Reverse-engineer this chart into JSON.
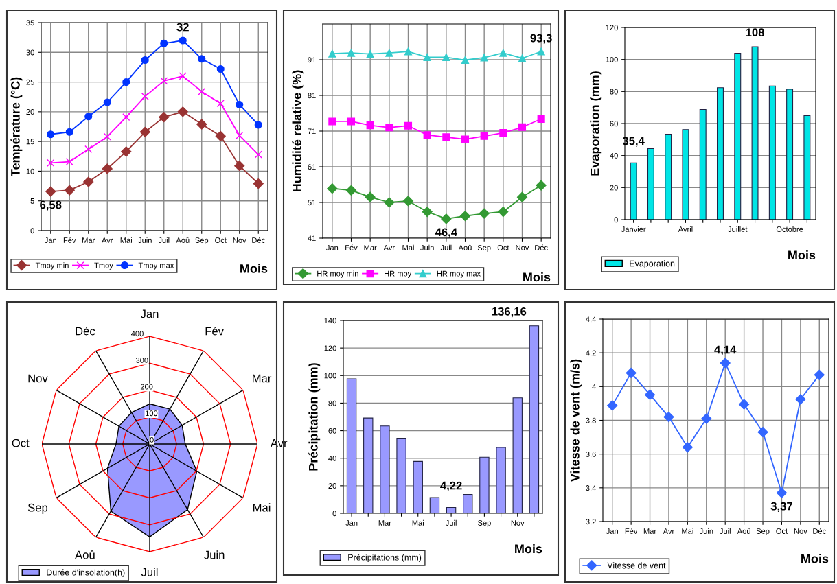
{
  "chart_data": [
    {
      "type": "line",
      "ylabel": "Température (°C)",
      "xlabel": "Mois",
      "categories": [
        "Jan",
        "Fév",
        "Mar",
        "Avr",
        "Mai",
        "Juin",
        "Juil",
        "Aoû",
        "Sep",
        "Oct",
        "Nov",
        "Déc"
      ],
      "ylim": [
        0,
        35
      ],
      "yticks": [
        0,
        5,
        10,
        15,
        20,
        25,
        30,
        35
      ],
      "grid": true,
      "legend": "bottom",
      "series": [
        {
          "name": "Tmoy min",
          "color": "#993333",
          "marker": "diamond",
          "values": [
            6.58,
            6.8,
            8.2,
            10.4,
            13.3,
            16.6,
            19.1,
            20.0,
            17.9,
            15.9,
            10.9,
            7.9
          ]
        },
        {
          "name": "Tmoy",
          "color": "#ff00ff",
          "marker": "cross",
          "values": [
            11.4,
            11.6,
            13.7,
            15.8,
            19.1,
            22.6,
            25.2,
            26.0,
            23.4,
            21.4,
            16.0,
            12.8
          ]
        },
        {
          "name": "Tmoy max",
          "color": "#0033ff",
          "marker": "circle",
          "values": [
            16.2,
            16.6,
            19.2,
            21.6,
            25.0,
            28.7,
            31.5,
            32.0,
            28.9,
            27.2,
            21.2,
            17.8
          ]
        }
      ],
      "annotations": [
        {
          "text": "6,58",
          "x": "Jan",
          "y": 6.58
        },
        {
          "text": "32",
          "x": "Aoû",
          "y": 32
        }
      ]
    },
    {
      "type": "line",
      "ylabel": "Humidité relative (%)",
      "xlabel": "Mois",
      "categories": [
        "Jan",
        "Fév",
        "Mar",
        "Avr",
        "Mai",
        "Juin",
        "Juil",
        "Aoû",
        "Sep",
        "Oct",
        "Nov",
        "Déc"
      ],
      "ylim": [
        41,
        101
      ],
      "yticks": [
        41,
        51,
        61,
        71,
        81,
        91
      ],
      "grid": true,
      "legend": "bottom",
      "series": [
        {
          "name": "HR moy min",
          "color": "#339933",
          "marker": "diamond",
          "values": [
            54.9,
            54.4,
            52.5,
            51.0,
            51.4,
            48.4,
            46.4,
            47.2,
            47.9,
            48.4,
            52.5,
            55.8
          ]
        },
        {
          "name": "HR moy",
          "color": "#ff00ff",
          "marker": "square",
          "values": [
            73.7,
            73.7,
            72.6,
            72.0,
            72.5,
            69.9,
            69.3,
            68.7,
            69.6,
            70.5,
            72.1,
            74.4
          ]
        },
        {
          "name": "HR moy max",
          "color": "#33cccc",
          "marker": "triangle",
          "values": [
            92.7,
            92.9,
            92.6,
            92.9,
            93.3,
            91.7,
            91.7,
            90.9,
            91.6,
            92.9,
            91.4,
            93.3
          ]
        }
      ],
      "annotations": [
        {
          "text": "93,3",
          "x": "Déc",
          "y": 93.3
        },
        {
          "text": "46,4",
          "x": "Juil",
          "y": 46.4
        }
      ]
    },
    {
      "type": "bar",
      "ylabel": "Evaporation (mm)",
      "xlabel": "Mois",
      "categories": [
        "Janvier",
        null,
        null,
        "Avril",
        null,
        null,
        "Juillet",
        null,
        null,
        "Octobre",
        null
      ],
      "ylim": [
        0,
        120
      ],
      "yticks": [
        0,
        20,
        40,
        60,
        80,
        100,
        120
      ],
      "grid": "y",
      "legend": "bottom left",
      "series": [
        {
          "name": "Evaporation",
          "color": "#00e5e5",
          "values": [
            35.4,
            44.4,
            53.3,
            56.2,
            68.8,
            82.4,
            103.9,
            108,
            83.4,
            81.4,
            64.9
          ]
        }
      ],
      "annotations": [
        {
          "text": "35,4",
          "x": "Janvier",
          "y": 35.4
        },
        "108"
      ]
    },
    {
      "type": "radar",
      "categories": [
        "Jan",
        "Fév",
        "Mar",
        "Avr",
        "Mai",
        "Juin",
        "Juil",
        "Aoû",
        "Sep",
        "Oct",
        "Nov",
        "Déc"
      ],
      "ylim": [
        0,
        400
      ],
      "yticks": [
        0,
        100,
        200,
        300,
        400
      ],
      "grid": true,
      "legend": "bottom left",
      "series": [
        {
          "name": "Durée d'insolation(h)",
          "color": "#9999ff",
          "values": [
            149,
            150,
            139,
            132,
            202,
            281,
            345,
            288,
            181,
            125,
            132,
            135
          ]
        }
      ]
    },
    {
      "type": "bar",
      "ylabel": "Précipitation (mm)",
      "xlabel": "Mois",
      "categories": [
        "Jan",
        null,
        "Mar",
        null,
        "Mai",
        null,
        "Juil",
        null,
        "Sep",
        null,
        "Nov",
        null
      ],
      "ylim": [
        0,
        140
      ],
      "yticks": [
        0,
        20,
        40,
        60,
        80,
        100,
        120,
        140
      ],
      "grid": "y",
      "legend": "bottom left",
      "series": [
        {
          "name": "Précipitations (mm)",
          "color": "#9999ff",
          "values": [
            97.6,
            69.2,
            63.4,
            54.5,
            37.7,
            11.4,
            4.22,
            13.7,
            40.7,
            47.8,
            83.8,
            136.16
          ]
        }
      ],
      "annotations": [
        {
          "text": "4,22",
          "x": "Juil",
          "y": 4.22
        },
        "136,16"
      ]
    },
    {
      "type": "line",
      "ylabel": "Vitesse de vent (m/s)",
      "xlabel": "Mois",
      "categories": [
        "Jan",
        "Fév",
        "Mar",
        "Avr",
        "Mai",
        "Juin",
        "Juil",
        "Aoû",
        "Sep",
        "Oct",
        "Nov",
        "Déc"
      ],
      "ylim": [
        3.2,
        4.4
      ],
      "yticks": [
        {
          "value": 3.2,
          "label": "3,2"
        },
        {
          "value": 3.4,
          "label": "3,4"
        },
        {
          "value": 3.6,
          "label": "3,6"
        },
        {
          "value": 3.8,
          "label": "3,8"
        },
        4,
        {
          "value": 4.2,
          "label": "4,2"
        },
        {
          "value": 4.4,
          "label": "4,4"
        }
      ],
      "grid": true,
      "legend": "bottom left",
      "series": [
        {
          "name": "Vitesse de vent",
          "color": "#3366ff",
          "marker": "diamond",
          "values": [
            3.888,
            4.081,
            3.952,
            3.82,
            3.64,
            3.81,
            4.14,
            3.895,
            3.73,
            3.37,
            3.925,
            4.069
          ]
        }
      ],
      "annotations": [
        {
          "text": "4,14",
          "x": "Juil",
          "y": 4.14
        },
        {
          "text": "3,37",
          "x": "Oct",
          "y": 3.37
        }
      ]
    }
  ]
}
